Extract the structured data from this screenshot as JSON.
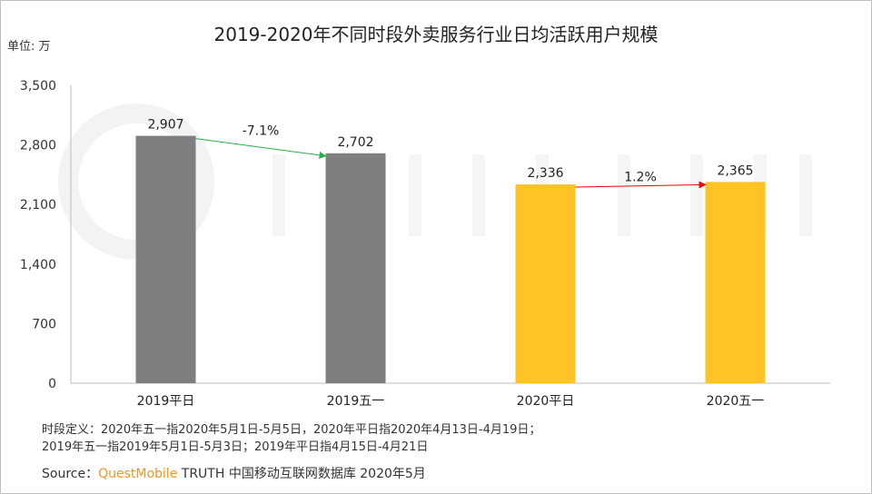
{
  "chart_data": {
    "type": "bar",
    "title": "2019-2020年不同时段外卖服务行业日均活跃用户规模",
    "unit_label": "单位: 万",
    "categories": [
      "2019平日",
      "2019五一",
      "2020平日",
      "2020五一"
    ],
    "values": [
      2907,
      2702,
      2336,
      2365
    ],
    "value_labels": [
      "2,907",
      "2,702",
      "2,336",
      "2,365"
    ],
    "colors": [
      "#7f7f7f",
      "#7f7f7f",
      "#ffc326",
      "#ffc326"
    ],
    "ylim": [
      0,
      3500
    ],
    "yticks": [
      0,
      700,
      1400,
      2100,
      2800,
      3500
    ],
    "ytick_labels": [
      "0",
      "700",
      "1,400",
      "2,100",
      "2,800",
      "3,500"
    ],
    "grid": false,
    "annotations": [
      {
        "from": 0,
        "to": 1,
        "label": "-7.1%",
        "color": "#22b14c"
      },
      {
        "from": 2,
        "to": 3,
        "label": "1.2%",
        "color": "#ff0000"
      }
    ]
  },
  "notes": {
    "line1": "时段定义：2020年五一指2020年5月1日-5月5日，2020年平日指2020年4月13日-4月19日；",
    "line2": "2019年五一指2019年5月1日-5月3日；2019年平日指4月15日-4月21日",
    "source_prefix": "Source：",
    "source_brand": "QuestMobile",
    "source_rest": " TRUTH 中国移动互联网数据库 2020年5月"
  },
  "watermark": "QUESTMOBILE"
}
